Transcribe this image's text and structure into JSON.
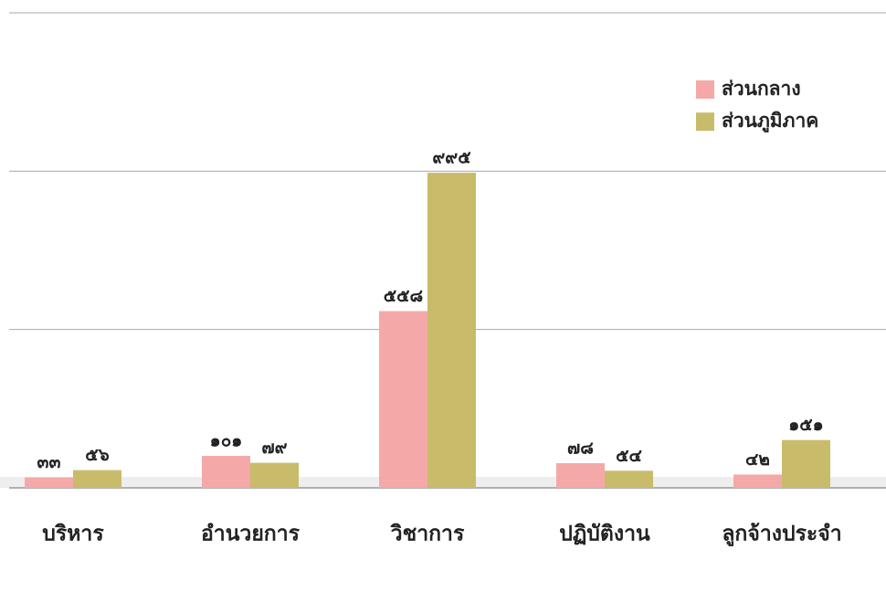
{
  "chart_data": {
    "type": "bar",
    "categories": [
      "บริหาร",
      "อำนวยการ",
      "วิชาการ",
      "ปฏิบัติงาน",
      "ลูกจ้างประจำ"
    ],
    "series": [
      {
        "name": "ส่วนกลาง",
        "color": "#f4a9a8",
        "values": [
          33,
          101,
          558,
          78,
          42
        ],
        "value_labels": [
          "๓๓",
          "๑๐๑",
          "๕๕๘",
          "๗๘",
          "๔๒"
        ]
      },
      {
        "name": "ส่วนภูมิภาค",
        "color": "#c8bc6a",
        "values": [
          56,
          79,
          995,
          54,
          151
        ],
        "value_labels": [
          "๕๖",
          "๗๙",
          "๙๙๕",
          "๕๔",
          "๑๕๑"
        ]
      }
    ],
    "ylim": [
      0,
      1500
    ],
    "yticks": [
      0,
      500,
      1000,
      1500
    ],
    "grid": true,
    "legend": "top-right"
  }
}
